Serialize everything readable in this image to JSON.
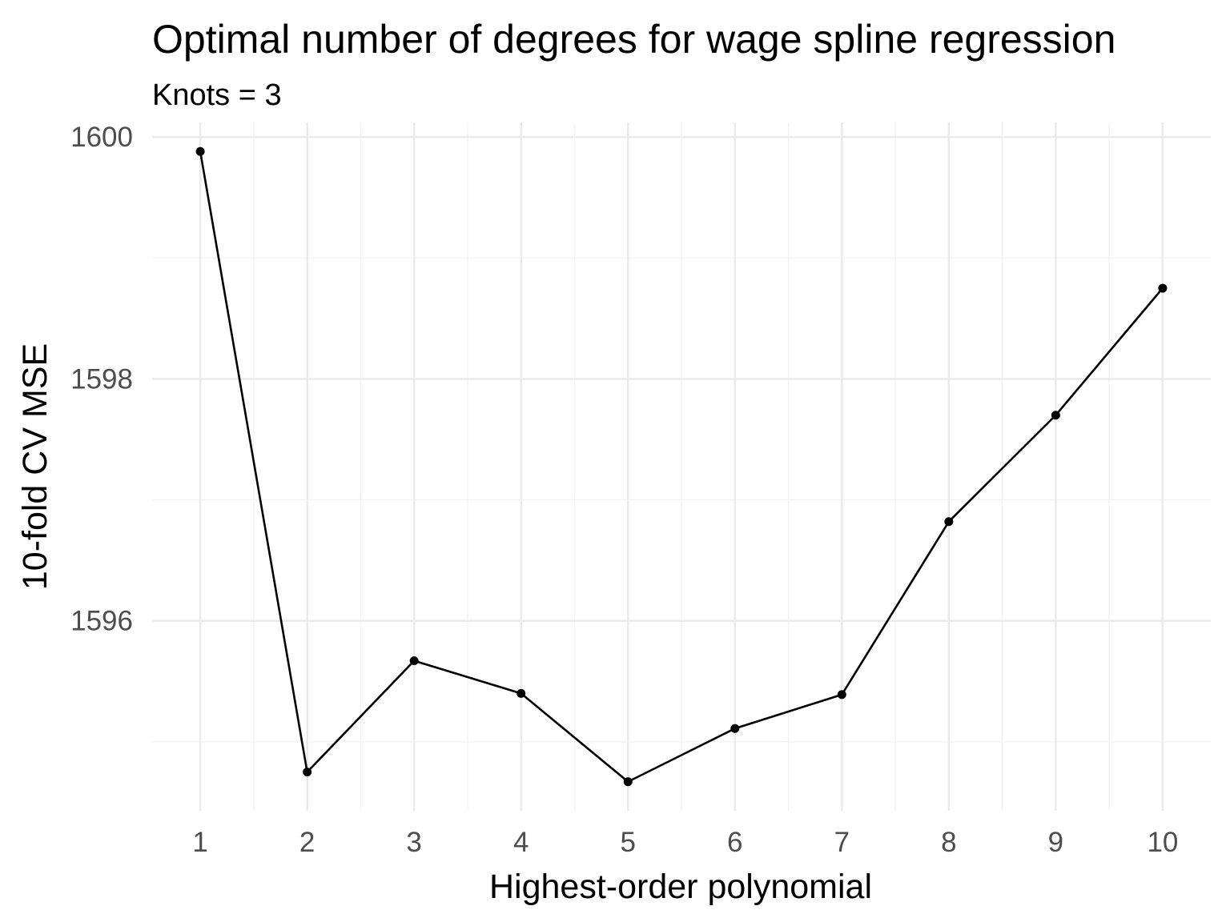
{
  "chart_data": {
    "type": "line",
    "title": "Optimal number of degrees for wage spline regression",
    "subtitle": "Knots = 3",
    "xlabel": "Highest-order polynomial",
    "ylabel": "10-fold CV MSE",
    "x": [
      1,
      2,
      3,
      4,
      5,
      6,
      7,
      8,
      9,
      10
    ],
    "series": [
      {
        "values": [
          1599.88,
          1594.75,
          1595.67,
          1595.4,
          1594.67,
          1595.11,
          1595.39,
          1596.82,
          1597.7,
          1598.75
        ]
      }
    ],
    "xticks": [
      1,
      2,
      3,
      4,
      5,
      6,
      7,
      8,
      9,
      10
    ],
    "yticks": [
      1596,
      1598,
      1600
    ],
    "xlim": [
      0.55,
      10.45
    ],
    "ylim": [
      1594.43,
      1600.12
    ],
    "grid": true,
    "legend": "none",
    "colors": {
      "line": "#000000",
      "grid_major": "#ebebeb",
      "grid_minor": "#f2f2f2",
      "tick_text": "#4d4d4d"
    }
  }
}
